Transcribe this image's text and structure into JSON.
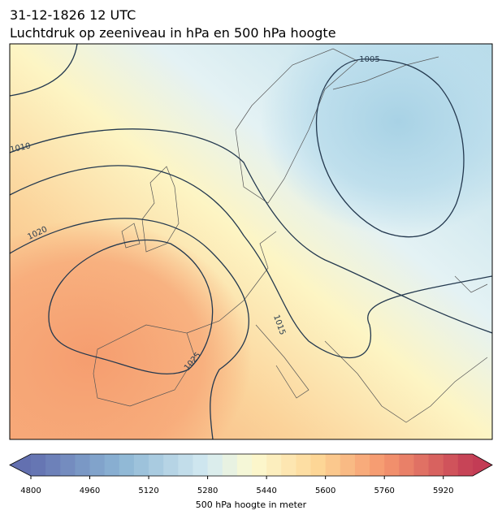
{
  "header": {
    "title": "31-12-1826 12 UTC",
    "subtitle": "Luchtdruk op zeeniveau in hPa en 500 hPa hoogte"
  },
  "map": {
    "contour_labels": [
      1005,
      1010,
      1020,
      1015,
      1025
    ]
  },
  "colorbar": {
    "range": [
      4800,
      6000
    ],
    "ticks": [
      4800,
      4960,
      5120,
      5280,
      5440,
      5600,
      5760,
      5920
    ],
    "label": "500 hPa hoogte in meter"
  }
}
